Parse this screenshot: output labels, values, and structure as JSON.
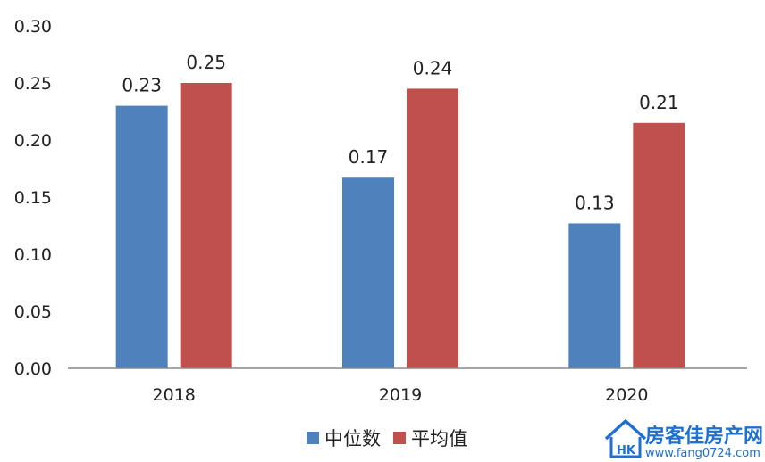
{
  "chart_data": {
    "type": "bar",
    "categories": [
      "2018",
      "2019",
      "2020"
    ],
    "series": [
      {
        "name": "中位数",
        "values": [
          0.23,
          0.167,
          0.127
        ],
        "labels": [
          "0.23",
          "0.17",
          "0.13"
        ],
        "color": "#4f81bd"
      },
      {
        "name": "平均值",
        "values": [
          0.25,
          0.245,
          0.215
        ],
        "labels": [
          "0.25",
          "0.24",
          "0.21"
        ],
        "color": "#c0504d"
      }
    ],
    "ylim": [
      0,
      0.3
    ],
    "yticks": [
      "0.00",
      "0.05",
      "0.10",
      "0.15",
      "0.20",
      "0.25",
      "0.30"
    ],
    "grid": false,
    "legend_position": "bottom"
  },
  "watermark": {
    "name": "房客佳房产网",
    "url": "www.fang0724.com",
    "logo_icon": "house-logo-icon",
    "color": "#1d6fd1"
  }
}
